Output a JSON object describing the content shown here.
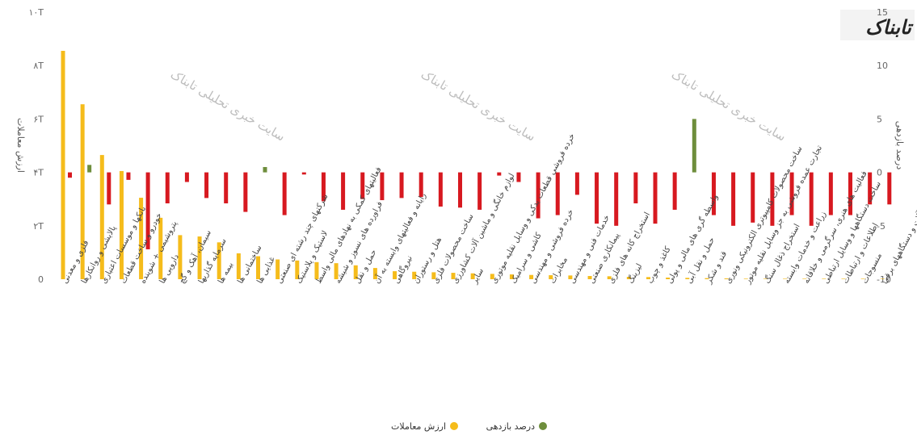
{
  "logo_text": "تابناک",
  "watermark_text": "سایت خبری تحلیلی تابناک",
  "chart_data": {
    "type": "bar",
    "title": "",
    "left_axis_title": "ارزش معاملات",
    "right_axis_title": "درصد بازدهی",
    "left_ticks": [
      "0",
      "۲T",
      "۴T",
      "۶T",
      "۸T",
      "۱۰T"
    ],
    "left_ylim": [
      0,
      10
    ],
    "right_ticks": [
      "-10",
      "-5",
      "0",
      "5",
      "10",
      "15"
    ],
    "right_ylim": [
      -10,
      15
    ],
    "grid": false,
    "legend_position": "bottom",
    "colors": {
      "value": "#f5bc1b",
      "positive": "#6e8e3c",
      "negative": "#d71920"
    },
    "categories": [
      "فلزی و معدنی",
      "پالایشی و روانکارها",
      "بانکها و موسسات اعتباری",
      "خودرو و ساخت قطعات",
      "پتروشیمی + شوینده",
      "دارویی ها",
      "سیمان، آهک و گچ",
      "سرمایه گذاریها",
      "بیمه ها",
      "ساختمانی ها",
      "غذایی ها",
      "شرکتهای چند رشته ای صنعتی",
      "لاستیک و پلاستیک",
      "فعالیتهای کمکی به نهادهای مالی واسط",
      "فراورده های نسوز و شیشه",
      "حمل و نقل",
      "رایانه و فعالیتهای وابسته به آن",
      "نیروگاهی",
      "هتل و رستوران",
      "ساخت محصولات فلزی",
      "لوازم خانگی و ماشین آلات کشاورزی",
      "سایر",
      "خرده فروشی قطعات یدکی و وسایل نقلیه موتوری",
      "کاشی و سرامیک",
      "خرده فروشی و مهندسی",
      "مخابرات",
      "خدمات فنی و مهندسی",
      "پیمانکاری صنعتی",
      "استخراج کانه های فلزی",
      "لیزینگ",
      "کاغذ و چوب",
      "واسطه گری های مالی و پولی",
      "حمل و نقل آبی",
      "قند و شکر",
      "ساخت محصولات کامپیوتری الکترونیکی ونوری",
      "تجارت عمده فروشی به جز وسایل نقلیه موتور",
      "استخراج ذغال سنگ",
      "زراعت و خدمات وابسته",
      "فعالیت های هنری، سرگرمی و خلاقانه",
      "ساخت دستگاهها و وسایل ارتباطی",
      "اطلاعات و ارتباطات",
      "منسوجات",
      "ماشین آلات و دستگاههای برقی"
    ],
    "series": [
      {
        "name": "ارزش معاملات",
        "axis": "left",
        "values": [
          8.55,
          6.55,
          4.65,
          4.05,
          3.05,
          2.3,
          1.65,
          1.6,
          1.38,
          0.97,
          0.86,
          0.74,
          0.7,
          0.64,
          0.6,
          0.52,
          0.42,
          0.3,
          0.28,
          0.26,
          0.24,
          0.22,
          0.2,
          0.18,
          0.16,
          0.15,
          0.14,
          0.12,
          0.11,
          0.09,
          0.08,
          0.06,
          0.05,
          0.04,
          0.03,
          0.02,
          0.0,
          0.0,
          0.0,
          0.0,
          0.0,
          0.0,
          0.0
        ]
      },
      {
        "name": "درصد بازدهی",
        "axis": "right",
        "values": [
          -0.5,
          0.7,
          -3.0,
          -0.7,
          -7.2,
          -2.9,
          -0.9,
          -2.4,
          -2.9,
          -3.7,
          0.5,
          -4.0,
          -0.2,
          -2.7,
          -3.5,
          -2.5,
          -2.6,
          -2.4,
          -2.3,
          -3.2,
          -3.3,
          -3.5,
          -0.3,
          -0.9,
          -4.3,
          -4.0,
          -2.1,
          -4.8,
          -5.0,
          -2.9,
          -4.8,
          -3.5,
          5.0,
          -4.0,
          -5.0,
          -4.7,
          -5.0,
          -4.0,
          -5.0,
          -4.0,
          -4.0,
          -3.0,
          -3.0
        ]
      }
    ]
  }
}
